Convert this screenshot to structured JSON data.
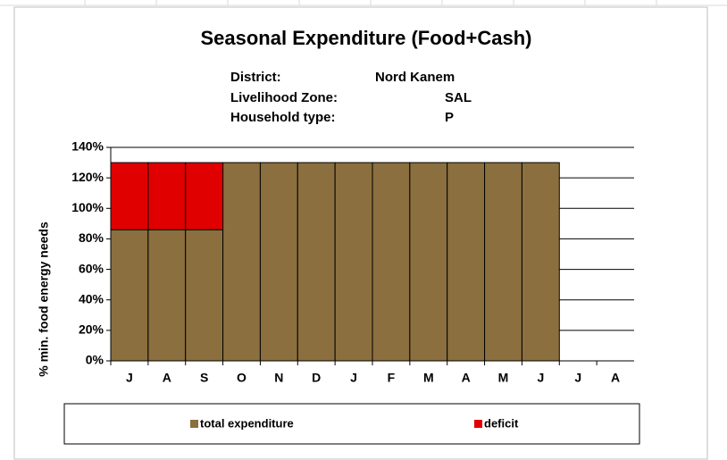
{
  "chart_data": {
    "type": "bar",
    "stacked": true,
    "title": "Seasonal Expenditure (Food+Cash)",
    "subtitle": [
      {
        "label": "District:",
        "value": "Nord Kanem"
      },
      {
        "label": "Livelihood Zone:",
        "value": "SAL"
      },
      {
        "label": "Household type:",
        "value": "P"
      }
    ],
    "y_label": "% min. food energy needs",
    "categories": [
      "J",
      "A",
      "S",
      "O",
      "N",
      "D",
      "J",
      "F",
      "M",
      "A",
      "M",
      "J",
      "J",
      "A"
    ],
    "series": [
      {
        "name": "total expenditure",
        "color": "#8b6f3e",
        "values": [
          86,
          86,
          86,
          130,
          130,
          130,
          130,
          130,
          130,
          130,
          130,
          130,
          null,
          null
        ]
      },
      {
        "name": "deficit",
        "color": "#e00000",
        "values": [
          44,
          44,
          44,
          0,
          0,
          0,
          0,
          0,
          0,
          0,
          0,
          0,
          null,
          null
        ]
      }
    ],
    "ylim": [
      0,
      140
    ],
    "yticks": [
      {
        "value": 0,
        "label": "0%"
      },
      {
        "value": 20,
        "label": "20%"
      },
      {
        "value": 40,
        "label": "40%"
      },
      {
        "value": 60,
        "label": "60%"
      },
      {
        "value": 80,
        "label": "80%"
      },
      {
        "value": 100,
        "label": "100%"
      },
      {
        "value": 120,
        "label": "120%"
      },
      {
        "value": 140,
        "label": "140%"
      }
    ],
    "grid": true
  }
}
